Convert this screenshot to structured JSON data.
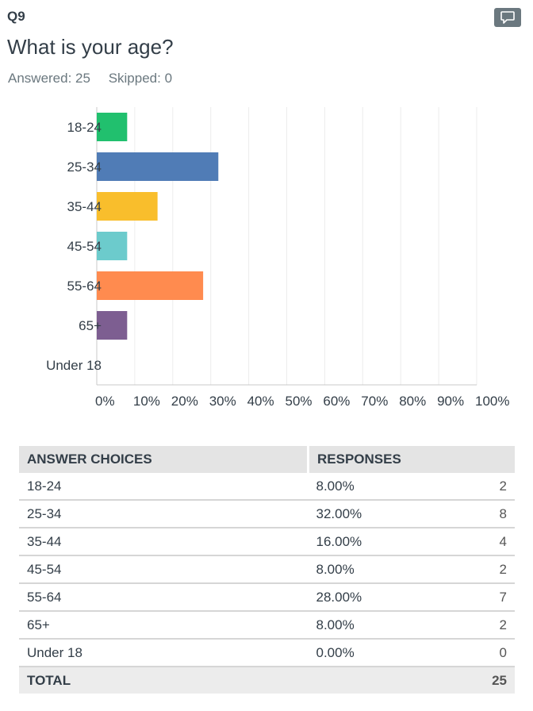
{
  "question": {
    "number": "Q9",
    "title": "What is your age?",
    "answered": "Answered: 25",
    "skipped": "Skipped: 0",
    "comment_icon": "speech-bubble-icon"
  },
  "chart_data": {
    "type": "bar",
    "orientation": "horizontal",
    "categories": [
      "18-24",
      "25-34",
      "35-44",
      "45-54",
      "55-64",
      "65+",
      "Under 18"
    ],
    "values": [
      8,
      32,
      16,
      8,
      28,
      8,
      0
    ],
    "colors": [
      "#21c06e",
      "#507cb6",
      "#f9be2c",
      "#6ccbcc",
      "#ff8b4f",
      "#7d5e91",
      "#999999"
    ],
    "xlim": [
      0,
      100
    ],
    "xticks": [
      "0%",
      "10%",
      "20%",
      "30%",
      "40%",
      "50%",
      "60%",
      "70%",
      "80%",
      "90%",
      "100%"
    ],
    "grid": true
  },
  "table": {
    "headers": {
      "choice": "ANSWER CHOICES",
      "responses": "RESPONSES"
    },
    "rows": [
      {
        "choice": "18-24",
        "pct": "8.00%",
        "count": "2"
      },
      {
        "choice": "25-34",
        "pct": "32.00%",
        "count": "8"
      },
      {
        "choice": "35-44",
        "pct": "16.00%",
        "count": "4"
      },
      {
        "choice": "45-54",
        "pct": "8.00%",
        "count": "2"
      },
      {
        "choice": "55-64",
        "pct": "28.00%",
        "count": "7"
      },
      {
        "choice": "65+",
        "pct": "8.00%",
        "count": "2"
      },
      {
        "choice": "Under 18",
        "pct": "0.00%",
        "count": "0"
      }
    ],
    "total": {
      "label": "TOTAL",
      "count": "25"
    }
  }
}
